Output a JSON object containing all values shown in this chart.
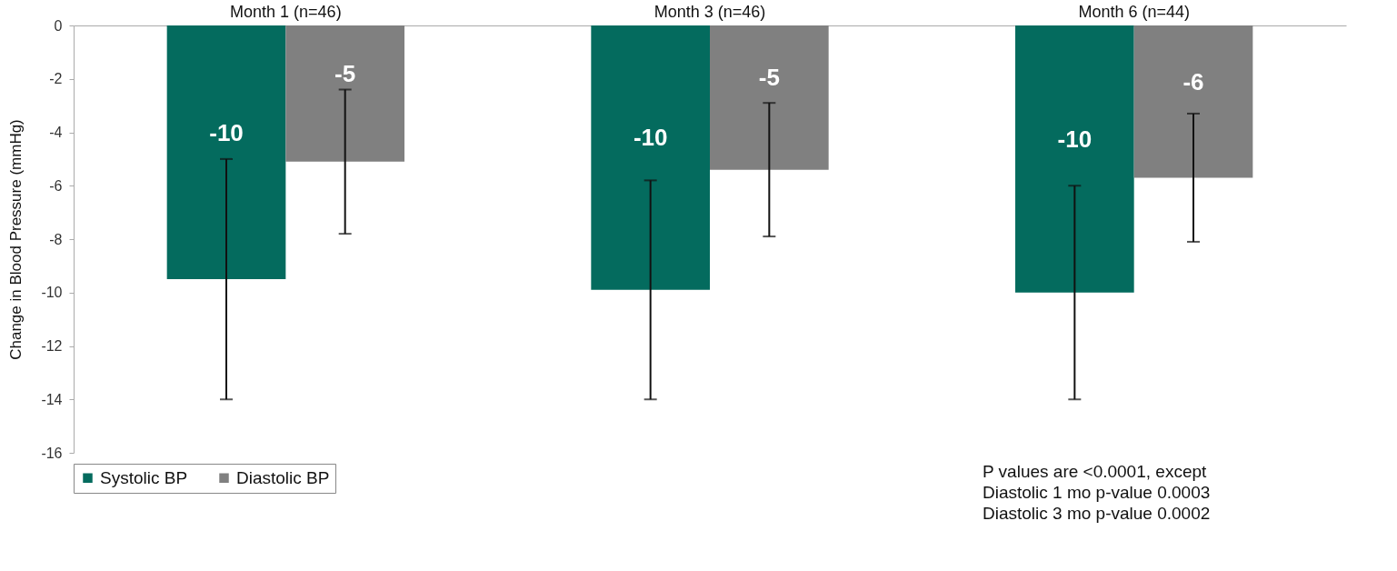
{
  "chart_data": {
    "type": "bar",
    "ylabel": "Change in Blood Pressure (mmHg)",
    "categories": [
      "Month 1 (n=46)",
      "Month 3 (n=46)",
      "Month 6  (n=44)"
    ],
    "series": [
      {
        "name": "Systolic BP",
        "color": "#046b5e",
        "values": [
          -9.5,
          -9.9,
          -10.0
        ],
        "errors": [
          [
            -14.0,
            -5.0
          ],
          [
            -14.0,
            -5.8
          ],
          [
            -14.0,
            -6.0
          ]
        ],
        "value_labels": [
          "-10",
          "-10",
          "-10"
        ]
      },
      {
        "name": "Diastolic BP",
        "color": "#808080",
        "values": [
          -5.1,
          -5.4,
          -5.7
        ],
        "errors": [
          [
            -7.8,
            -2.4
          ],
          [
            -7.9,
            -2.9
          ],
          [
            -8.1,
            -3.3
          ]
        ],
        "value_labels": [
          "-5",
          "-5",
          "-6"
        ]
      }
    ],
    "ylim": [
      -16,
      0
    ],
    "yticks": [
      0,
      -2,
      -4,
      -6,
      -8,
      -10,
      -12,
      -14,
      -16
    ],
    "grid": false,
    "legend": "bottom",
    "annotations": [
      "P values are <0.0001, except",
      "Diastolic 1 mo p-value 0.0003",
      "Diastolic 3 mo p-value 0.0002"
    ]
  }
}
